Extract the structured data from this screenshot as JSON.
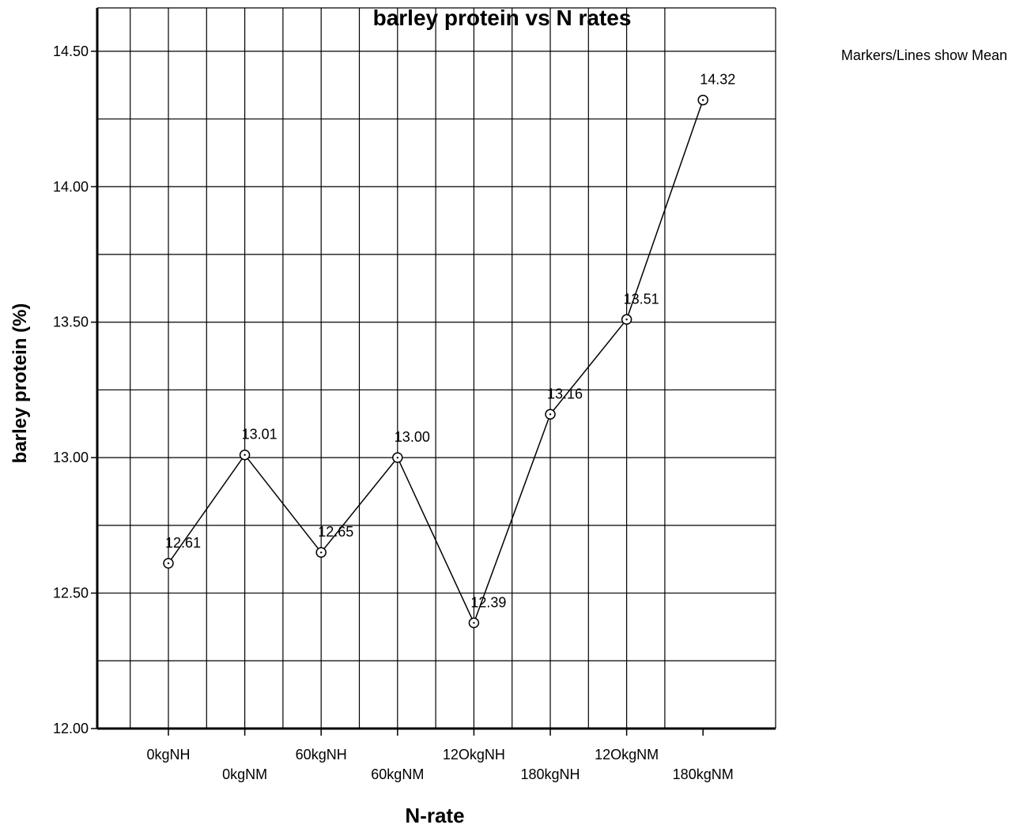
{
  "chart_data": {
    "type": "line",
    "title": "barley protein vs N rates",
    "note": "Markers/Lines show Mean",
    "xlabel": "N-rate",
    "ylabel": "barley protein (%)",
    "categories": [
      "0kgNH",
      "0kgNM",
      "60kgNH",
      "60kgNM",
      "12OkgNH",
      "180kgNH",
      "12OkgNM",
      "180kgNM"
    ],
    "series": [
      {
        "values": [
          12.61,
          13.01,
          12.65,
          13.0,
          12.39,
          13.16,
          13.51,
          14.32
        ]
      }
    ],
    "data_labels": [
      "12.61",
      "13.01",
      "12.65",
      "13.00",
      "12.39",
      "13.16",
      "13.51",
      "14.32"
    ],
    "ylim": [
      12.0,
      14.66
    ],
    "yticks": [
      12.0,
      12.5,
      13.0,
      13.5,
      14.0,
      14.5
    ],
    "ytick_labels": [
      "12.00",
      "12.50",
      "13.00",
      "13.50",
      "14.00",
      "14.50"
    ],
    "gridlines_y": [
      12.25,
      12.75,
      13.25,
      13.75,
      14.25
    ],
    "grid": true,
    "line_color": "#000000",
    "grid_color": "#000000"
  }
}
